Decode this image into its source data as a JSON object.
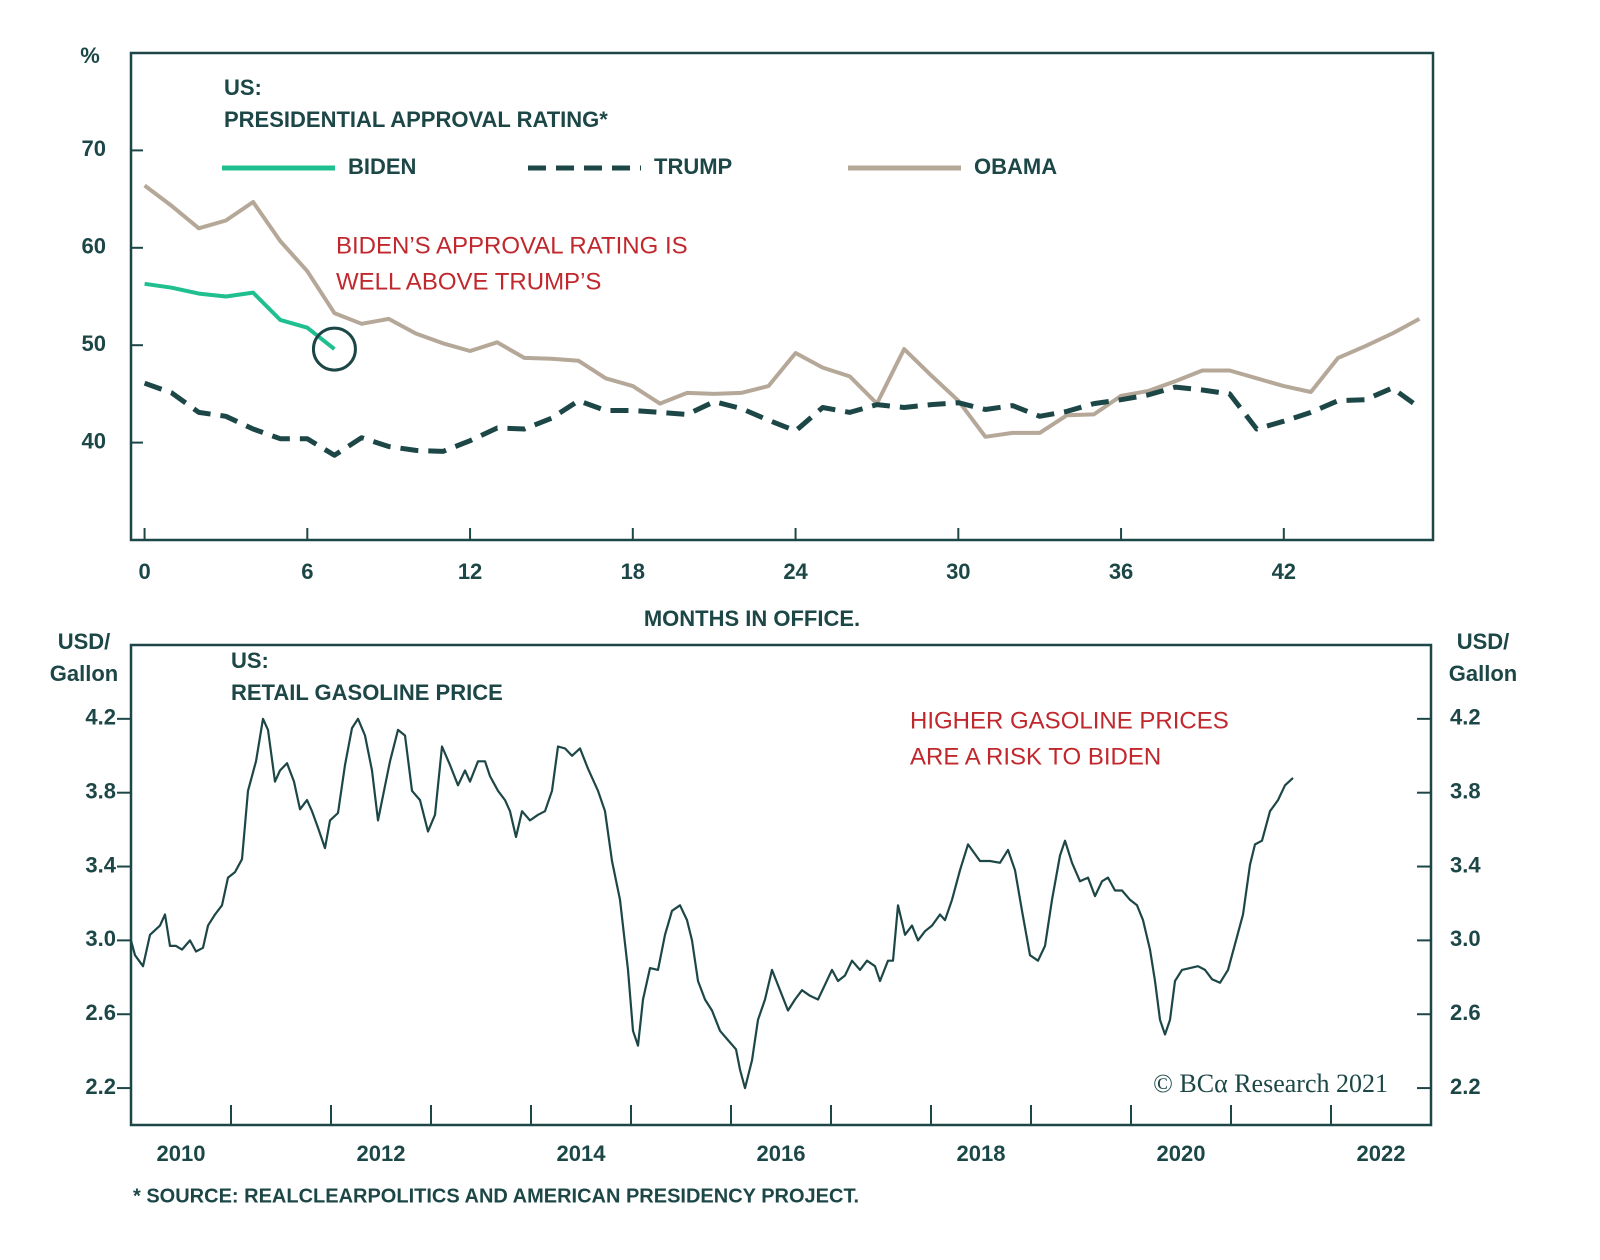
{
  "chart_data": [
    {
      "type": "line",
      "title": [
        "US:",
        "PRESIDENTIAL APPROVAL RATING*"
      ],
      "ylabel": "%",
      "xlabel": "MONTHS IN OFFICE.",
      "annotation": [
        "BIDEN’S APPROVAL RATING IS",
        "WELL ABOVE TRUMP’S"
      ],
      "x": [
        0,
        1,
        2,
        3,
        4,
        5,
        6,
        7,
        8,
        9,
        10,
        11,
        12,
        13,
        14,
        15,
        16,
        17,
        18,
        19,
        20,
        21,
        22,
        23,
        24,
        25,
        26,
        27,
        28,
        29,
        30,
        31,
        32,
        33,
        34,
        35,
        36,
        37,
        38,
        39,
        40,
        41,
        42,
        43,
        44,
        45,
        46,
        47
      ],
      "series": [
        {
          "name": "BIDEN",
          "color": "#1fbf8f",
          "line_style": "solid",
          "values": [
            56.3,
            55.9,
            55.3,
            55.0,
            55.4,
            52.6,
            51.8,
            49.6,
            null,
            null,
            null,
            null,
            null,
            null,
            null,
            null,
            null,
            null,
            null,
            null,
            null,
            null,
            null,
            null,
            null,
            null,
            null,
            null,
            null,
            null,
            null,
            null,
            null,
            null,
            null,
            null,
            null,
            null,
            null,
            null,
            null,
            null,
            null,
            null,
            null,
            null,
            null,
            null
          ]
        },
        {
          "name": "TRUMP",
          "color": "#1d4747",
          "line_style": "dashed",
          "values": [
            46.1,
            45.1,
            43.1,
            42.7,
            41.4,
            40.4,
            40.4,
            38.7,
            40.5,
            39.6,
            39.2,
            39.1,
            40.2,
            41.5,
            41.4,
            42.5,
            44.3,
            43.3,
            43.3,
            43.1,
            42.9,
            44.2,
            43.5,
            42.3,
            41.2,
            43.6,
            43.1,
            43.9,
            43.6,
            43.9,
            44.1,
            43.4,
            43.8,
            42.7,
            43.2,
            44.0,
            44.4,
            44.9,
            45.7,
            45.4,
            45.0,
            41.4,
            42.2,
            43.1,
            44.3,
            44.4,
            45.6,
            43.6
          ]
        },
        {
          "name": "OBAMA",
          "color": "#b5a898",
          "line_style": "solid",
          "values": [
            66.4,
            64.3,
            62.0,
            62.8,
            64.7,
            60.7,
            57.6,
            53.3,
            52.2,
            52.7,
            51.2,
            50.2,
            49.4,
            50.3,
            48.7,
            48.6,
            48.4,
            46.6,
            45.8,
            44.0,
            45.1,
            45.0,
            45.1,
            45.8,
            49.2,
            47.7,
            46.8,
            44.0,
            49.6,
            46.9,
            44.3,
            40.6,
            41.0,
            41.0,
            42.8,
            42.9,
            44.8,
            45.3,
            46.3,
            47.4,
            47.4,
            46.6,
            45.8,
            45.2,
            48.7,
            49.9,
            51.2,
            52.7
          ]
        }
      ],
      "xlim": [
        -0.5,
        47.5
      ],
      "xticks": [
        0,
        6,
        12,
        18,
        24,
        30,
        36,
        42
      ],
      "ylim": [
        30,
        80
      ],
      "yticks": [
        40,
        50,
        60,
        70
      ]
    },
    {
      "type": "line",
      "title": [
        "US:",
        "RETAIL GASOLINE PRICE"
      ],
      "ylabel": [
        "USD/",
        "Gallon"
      ],
      "y2label": [
        "USD/",
        "Gallon"
      ],
      "annotation": [
        "HIGHER GASOLINE PRICES",
        "ARE A RISK TO BIDEN"
      ],
      "credit": "© BCα Research 2021",
      "color": "#1d4747",
      "x": [
        2010.0,
        2010.04,
        2010.12,
        2010.19,
        2010.29,
        2010.34,
        2010.39,
        2010.45,
        2010.51,
        2010.59,
        2010.65,
        2010.72,
        2010.77,
        2010.84,
        2010.91,
        2010.97,
        2011.04,
        2011.11,
        2011.17,
        2011.25,
        2011.32,
        2011.37,
        2011.44,
        2011.49,
        2011.56,
        2011.63,
        2011.69,
        2011.76,
        2011.81,
        2011.87,
        2011.94,
        2011.99,
        2012.07,
        2012.14,
        2012.21,
        2012.27,
        2012.34,
        2012.41,
        2012.47,
        2012.53,
        2012.59,
        2012.67,
        2012.74,
        2012.81,
        2012.89,
        2012.97,
        2013.04,
        2013.11,
        2013.19,
        2013.27,
        2013.34,
        2013.39,
        2013.47,
        2013.54,
        2013.59,
        2013.67,
        2013.74,
        2013.79,
        2013.85,
        2013.91,
        2013.99,
        2014.07,
        2014.14,
        2014.21,
        2014.27,
        2014.34,
        2014.41,
        2014.49,
        2014.57,
        2014.67,
        2014.74,
        2014.81,
        2014.89,
        2014.97,
        2015.02,
        2015.07,
        2015.12,
        2015.19,
        2015.27,
        2015.34,
        2015.41,
        2015.49,
        2015.56,
        2015.61,
        2015.67,
        2015.74,
        2015.81,
        2015.89,
        2015.97,
        2016.05,
        2016.09,
        2016.14,
        2016.21,
        2016.27,
        2016.34,
        2016.41,
        2016.49,
        2016.57,
        2016.64,
        2016.71,
        2016.79,
        2016.87,
        2016.94,
        2017.01,
        2017.07,
        2017.14,
        2017.21,
        2017.29,
        2017.36,
        2017.44,
        2017.49,
        2017.57,
        2017.62,
        2017.67,
        2017.74,
        2017.81,
        2017.87,
        2017.94,
        2018.01,
        2018.09,
        2018.14,
        2018.21,
        2018.29,
        2018.37,
        2018.41,
        2018.49,
        2018.59,
        2018.69,
        2018.77,
        2018.84,
        2018.91,
        2018.99,
        2019.07,
        2019.14,
        2019.21,
        2019.29,
        2019.34,
        2019.41,
        2019.49,
        2019.57,
        2019.64,
        2019.71,
        2019.77,
        2019.84,
        2019.91,
        2019.99,
        2020.06,
        2020.12,
        2020.19,
        2020.24,
        2020.29,
        2020.34,
        2020.39,
        2020.44,
        2020.51,
        2020.59,
        2020.67,
        2020.74,
        2020.81,
        2020.89,
        2020.97,
        2021.05,
        2021.12,
        2021.19,
        2021.24,
        2021.31,
        2021.39,
        2021.47,
        2021.54,
        2021.62
      ],
      "values": [
        3.0,
        2.92,
        2.86,
        3.03,
        3.08,
        3.14,
        2.97,
        2.97,
        2.95,
        3.0,
        2.94,
        2.96,
        3.08,
        3.14,
        3.19,
        3.34,
        3.37,
        3.44,
        3.81,
        3.97,
        4.2,
        4.14,
        3.86,
        3.92,
        3.96,
        3.86,
        3.71,
        3.76,
        3.7,
        3.61,
        3.5,
        3.65,
        3.69,
        3.95,
        4.15,
        4.2,
        4.11,
        3.92,
        3.65,
        3.81,
        3.97,
        4.14,
        4.11,
        3.81,
        3.76,
        3.59,
        3.68,
        4.05,
        3.95,
        3.84,
        3.92,
        3.86,
        3.97,
        3.97,
        3.89,
        3.81,
        3.76,
        3.7,
        3.56,
        3.7,
        3.65,
        3.68,
        3.7,
        3.81,
        4.05,
        4.04,
        4.0,
        4.04,
        3.93,
        3.81,
        3.7,
        3.43,
        3.22,
        2.84,
        2.51,
        2.43,
        2.68,
        2.85,
        2.84,
        3.03,
        3.16,
        3.19,
        3.11,
        3.0,
        2.78,
        2.68,
        2.62,
        2.51,
        2.46,
        2.41,
        2.3,
        2.2,
        2.35,
        2.57,
        2.68,
        2.84,
        2.73,
        2.62,
        2.68,
        2.73,
        2.7,
        2.68,
        2.76,
        2.84,
        2.78,
        2.81,
        2.89,
        2.84,
        2.89,
        2.86,
        2.78,
        2.89,
        2.89,
        3.19,
        3.03,
        3.08,
        3.0,
        3.05,
        3.08,
        3.14,
        3.11,
        3.22,
        3.38,
        3.52,
        3.49,
        3.43,
        3.43,
        3.42,
        3.49,
        3.38,
        3.16,
        2.92,
        2.89,
        2.97,
        3.22,
        3.46,
        3.54,
        3.42,
        3.32,
        3.34,
        3.24,
        3.32,
        3.34,
        3.27,
        3.27,
        3.22,
        3.19,
        3.11,
        2.95,
        2.78,
        2.57,
        2.49,
        2.57,
        2.78,
        2.84,
        2.85,
        2.86,
        2.84,
        2.79,
        2.77,
        2.84,
        3.0,
        3.14,
        3.41,
        3.52,
        3.54,
        3.7,
        3.76,
        3.84,
        3.88
      ],
      "xlim": [
        2010,
        2023
      ],
      "xtick_marks": [
        2011,
        2012,
        2013,
        2014,
        2015,
        2016,
        2017,
        2018,
        2019,
        2020,
        2021,
        2022
      ],
      "xticks": [
        {
          "value": 2010.5,
          "label": "2010"
        },
        {
          "value": 2012.5,
          "label": "2012"
        },
        {
          "value": 2014.5,
          "label": "2014"
        },
        {
          "value": 2016.5,
          "label": "2016"
        },
        {
          "value": 2018.5,
          "label": "2018"
        },
        {
          "value": 2020.5,
          "label": "2020"
        },
        {
          "value": 2022.5,
          "label": "2022"
        }
      ],
      "ylim": [
        2.0,
        4.6
      ],
      "yticks": [
        2.2,
        2.6,
        {
          "value": 3,
          "label": "3.0"
        },
        3.4,
        3.8,
        4.2
      ],
      "y2lim": [
        2.0,
        4.6
      ],
      "y2ticks": [
        2.2,
        2.6,
        {
          "value": 3,
          "label": "3.0"
        },
        3.4,
        3.8,
        4.2
      ]
    }
  ],
  "footnote": "* SOURCE: REALCLEARPOLITICS AND AMERICAN PRESIDENCY PROJECT."
}
